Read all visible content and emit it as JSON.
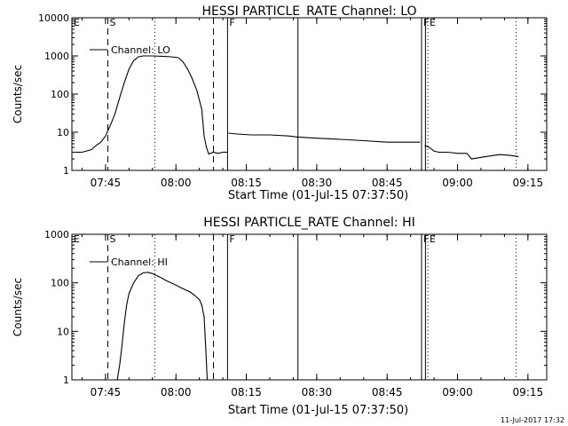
{
  "footer": {
    "stamp": "11-Jul-2017 17:32"
  },
  "chart_data": [
    {
      "type": "line",
      "title": "HESSI PARTICLE_RATE Channel: LO",
      "xlabel": "Start Time (01-Jul-15 07:37:50)",
      "ylabel": "Counts/sec",
      "yscale": "log",
      "ylim": [
        1,
        10000
      ],
      "y_ticks": [
        1,
        10,
        100,
        1000,
        10000
      ],
      "y_tick_labels": [
        "1",
        "10",
        "100",
        "1000",
        "10000"
      ],
      "xlim": [
        "07:37:50",
        "09:19:00"
      ],
      "x_ticks": [
        "07:45",
        "08:00",
        "08:15",
        "08:30",
        "08:45",
        "09:00",
        "09:15"
      ],
      "grid": false,
      "legend": {
        "position": "top-left",
        "entries": [
          "Channel: LO"
        ]
      },
      "event_markers": [
        {
          "time": "07:37:50",
          "label": "E",
          "style": "solid"
        },
        {
          "time": "07:45:30",
          "label": "S",
          "style": "dashed"
        },
        {
          "time": "07:55:30",
          "label": "",
          "style": "dotted"
        },
        {
          "time": "08:08:00",
          "label": "",
          "style": "dashed"
        },
        {
          "time": "08:11:00",
          "label": "F",
          "style": "solid"
        },
        {
          "time": "08:26:00",
          "label": "",
          "style": "solid"
        },
        {
          "time": "08:52:20",
          "label": "F",
          "style": "solid"
        },
        {
          "time": "08:53:10",
          "label": "",
          "style": "solid"
        },
        {
          "time": "08:53:40",
          "label": "E",
          "style": "dotted"
        },
        {
          "time": "09:12:30",
          "label": "",
          "style": "dotted"
        }
      ],
      "series": [
        {
          "name": "Channel: LO",
          "segments": [
            [
              [
                "07:38:00",
                3
              ],
              [
                "07:40:00",
                3
              ],
              [
                "07:42:00",
                3.5
              ],
              [
                "07:43:00",
                4.5
              ],
              [
                "07:44:00",
                5.5
              ],
              [
                "07:45:00",
                8
              ],
              [
                "07:46:00",
                15
              ],
              [
                "07:47:00",
                30
              ],
              [
                "07:48:00",
                80
              ],
              [
                "07:49:00",
                200
              ],
              [
                "07:50:00",
                450
              ],
              [
                "07:51:00",
                750
              ],
              [
                "07:52:00",
                950
              ],
              [
                "07:53:00",
                1000
              ],
              [
                "07:55:00",
                1000
              ],
              [
                "07:57:00",
                980
              ],
              [
                "07:59:00",
                950
              ],
              [
                "08:00:30",
                900
              ],
              [
                "08:01:30",
                700
              ],
              [
                "08:02:30",
                450
              ],
              [
                "08:03:30",
                250
              ],
              [
                "08:04:30",
                120
              ],
              [
                "08:05:30",
                40
              ],
              [
                "08:06:00",
                8
              ],
              [
                "08:06:30",
                4
              ],
              [
                "08:07:00",
                2.7
              ],
              [
                "08:08:00",
                3
              ],
              [
                "08:09:00",
                2.8
              ],
              [
                "08:10:00",
                3
              ],
              [
                "08:11:00",
                3
              ]
            ],
            [
              [
                "08:11:10",
                9.5
              ],
              [
                "08:13:00",
                9
              ],
              [
                "08:16:00",
                8.5
              ],
              [
                "08:20:00",
                8.5
              ],
              [
                "08:24:00",
                8
              ],
              [
                "08:26:00",
                7.5
              ],
              [
                "08:30:00",
                7
              ],
              [
                "08:35:00",
                6.5
              ],
              [
                "08:40:00",
                6
              ],
              [
                "08:45:00",
                5.5
              ],
              [
                "08:50:00",
                5.5
              ],
              [
                "08:52:00",
                5.5
              ]
            ],
            [
              [
                "08:53:00",
                4.5
              ],
              [
                "08:54:00",
                4
              ],
              [
                "08:55:00",
                3.2
              ],
              [
                "08:56:00",
                3
              ],
              [
                "08:58:00",
                3
              ],
              [
                "09:00:00",
                2.8
              ],
              [
                "09:02:00",
                2.8
              ],
              [
                "09:03:00",
                2
              ],
              [
                "09:05:00",
                2.2
              ],
              [
                "09:07:00",
                2.4
              ],
              [
                "09:09:00",
                2.6
              ],
              [
                "09:11:00",
                2.5
              ],
              [
                "09:13:00",
                2.3
              ]
            ]
          ]
        }
      ]
    },
    {
      "type": "line",
      "title": "HESSI PARTICLE_RATE Channel: HI",
      "xlabel": "Start Time (01-Jul-15 07:37:50)",
      "ylabel": "Counts/sec",
      "yscale": "log",
      "ylim": [
        1,
        1000
      ],
      "y_ticks": [
        1,
        10,
        100,
        1000
      ],
      "y_tick_labels": [
        "1",
        "10",
        "100",
        "1000"
      ],
      "xlim": [
        "07:37:50",
        "09:19:00"
      ],
      "x_ticks": [
        "07:45",
        "08:00",
        "08:15",
        "08:30",
        "08:45",
        "09:00",
        "09:15"
      ],
      "grid": false,
      "legend": {
        "position": "top-left",
        "entries": [
          "Channel: HI"
        ]
      },
      "event_markers": [
        {
          "time": "07:37:50",
          "label": "E",
          "style": "solid"
        },
        {
          "time": "07:45:30",
          "label": "S",
          "style": "dashed"
        },
        {
          "time": "07:55:30",
          "label": "",
          "style": "dotted"
        },
        {
          "time": "08:08:00",
          "label": "",
          "style": "dashed"
        },
        {
          "time": "08:11:00",
          "label": "F",
          "style": "solid"
        },
        {
          "time": "08:26:00",
          "label": "",
          "style": "solid"
        },
        {
          "time": "08:52:20",
          "label": "F",
          "style": "solid"
        },
        {
          "time": "08:53:10",
          "label": "",
          "style": "solid"
        },
        {
          "time": "08:53:40",
          "label": "E",
          "style": "dotted"
        },
        {
          "time": "09:12:30",
          "label": "",
          "style": "dotted"
        }
      ],
      "series": [
        {
          "name": "Channel: HI",
          "segments": [
            [
              [
                "07:47:30",
                1
              ],
              [
                "07:48:00",
                2
              ],
              [
                "07:48:30",
                5
              ],
              [
                "07:49:00",
                15
              ],
              [
                "07:49:30",
                35
              ],
              [
                "07:50:00",
                60
              ],
              [
                "07:51:00",
                100
              ],
              [
                "07:52:00",
                140
              ],
              [
                "07:53:00",
                160
              ],
              [
                "07:54:00",
                165
              ],
              [
                "07:55:00",
                155
              ],
              [
                "07:56:00",
                140
              ],
              [
                "07:57:00",
                125
              ],
              [
                "07:58:00",
                110
              ],
              [
                "07:59:00",
                100
              ],
              [
                "08:00:00",
                90
              ],
              [
                "08:01:00",
                80
              ],
              [
                "08:02:00",
                72
              ],
              [
                "08:03:00",
                65
              ],
              [
                "08:04:00",
                55
              ],
              [
                "08:05:00",
                45
              ],
              [
                "08:05:30",
                35
              ],
              [
                "08:06:00",
                20
              ],
              [
                "08:06:20",
                5
              ],
              [
                "08:06:40",
                1
              ]
            ]
          ]
        }
      ]
    }
  ]
}
